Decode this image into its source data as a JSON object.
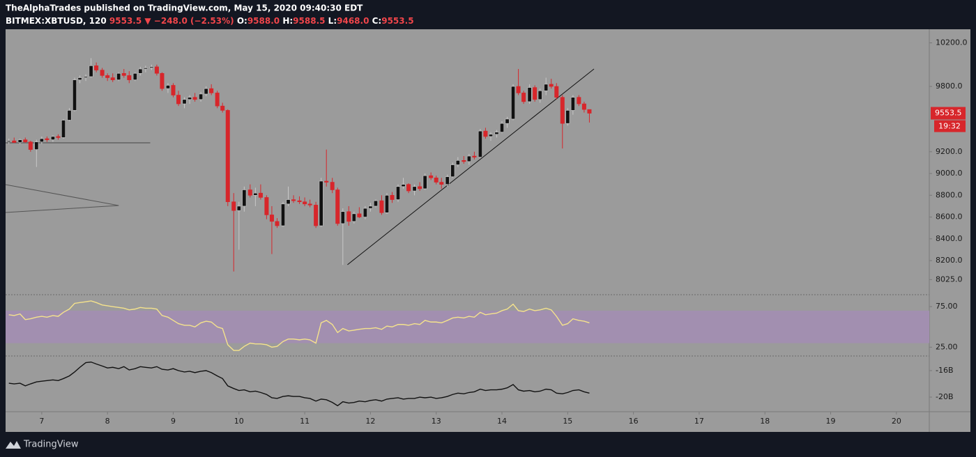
{
  "header": {
    "publisher": "TheAlphaTrades published on TradingView.com, May 15, 2020 09:40:30 EDT",
    "symbol": "BITMEX:XBTUSD, 120",
    "last": "9553.5",
    "change": "▼ −248.0 (−2.53%)",
    "ohlc": [
      {
        "key": "O:",
        "value": "9588.0"
      },
      {
        "key": "H:",
        "value": "9588.5"
      },
      {
        "key": "L:",
        "value": "9468.0"
      },
      {
        "key": "C:",
        "value": "9553.5"
      }
    ],
    "footer": "TradingView"
  },
  "chart_data": {
    "type": "candlestick",
    "background": "#9b9b9b",
    "up_color": "#111111",
    "up_border": "#c8c8c8",
    "down_color": "#d7262b",
    "x": [
      6.5,
      6.58,
      6.67,
      6.75,
      6.83,
      6.92,
      7,
      7.08,
      7.17,
      7.25,
      7.33,
      7.42,
      7.5,
      7.58,
      7.67,
      7.75,
      7.83,
      7.92,
      8,
      8.08,
      8.17,
      8.25,
      8.33,
      8.42,
      8.5,
      8.58,
      8.67,
      8.75,
      8.83,
      8.92,
      9,
      9.08,
      9.17,
      9.25,
      9.33,
      9.42,
      9.5,
      9.58,
      9.67,
      9.75,
      9.83,
      9.92,
      10,
      10.08,
      10.17,
      10.25,
      10.33,
      10.42,
      10.5,
      10.58,
      10.67,
      10.75,
      10.83,
      10.92,
      11,
      11.08,
      11.17,
      11.25,
      11.33,
      11.42,
      11.5,
      11.58,
      11.67,
      11.75,
      11.83,
      11.92,
      12,
      12.08,
      12.17,
      12.25,
      12.33,
      12.42,
      12.5,
      12.58,
      12.67,
      12.75,
      12.83,
      12.92,
      13,
      13.08,
      13.17,
      13.25,
      13.33,
      13.42,
      13.5,
      13.58,
      13.67,
      13.75,
      13.83,
      13.92,
      14,
      14.08,
      14.17,
      14.25,
      14.33,
      14.42,
      14.5,
      14.58,
      14.67,
      14.75,
      14.83,
      14.92,
      15,
      15.08,
      15.17,
      15.25,
      15.33
    ],
    "open": [
      9290,
      9300,
      9285,
      9310,
      9290,
      9220,
      9290,
      9320,
      9310,
      9340,
      9330,
      9490,
      9580,
      9860,
      9880,
      9890,
      9990,
      9950,
      9900,
      9880,
      9860,
      9920,
      9900,
      9860,
      9920,
      9960,
      9970,
      9980,
      9920,
      9780,
      9810,
      9720,
      9640,
      9680,
      9700,
      9680,
      9730,
      9780,
      9740,
      9620,
      9580,
      8740,
      8660,
      8700,
      8850,
      8800,
      8820,
      8780,
      8620,
      8560,
      8520,
      8720,
      8760,
      8750,
      8740,
      8720,
      8710,
      8520,
      8930,
      8920,
      8850,
      8540,
      8650,
      8560,
      8630,
      8600,
      8680,
      8700,
      8750,
      8640,
      8800,
      8760,
      8880,
      8900,
      8840,
      8880,
      8860,
      8980,
      8960,
      8920,
      8900,
      8970,
      9080,
      9120,
      9110,
      9160,
      9150,
      9390,
      9340,
      9360,
      9380,
      9460,
      9500,
      9800,
      9740,
      9660,
      9790,
      9680,
      9760,
      9820,
      9800,
      9700,
      9460,
      9580,
      9700,
      9640,
      9588
    ],
    "high": [
      9320,
      9330,
      9320,
      9330,
      9300,
      9310,
      9340,
      9340,
      9350,
      9360,
      9500,
      9600,
      9880,
      9900,
      9910,
      10060,
      10020,
      9970,
      9920,
      9920,
      9930,
      9960,
      9940,
      9930,
      9980,
      9990,
      10000,
      10000,
      9930,
      9830,
      9830,
      9760,
      9700,
      9720,
      9740,
      9750,
      9800,
      9820,
      9760,
      9650,
      9590,
      8820,
      8740,
      8880,
      8900,
      8870,
      8900,
      8800,
      8700,
      8590,
      8740,
      8880,
      8800,
      8790,
      8780,
      8760,
      8740,
      8960,
      9220,
      8960,
      8870,
      8680,
      8700,
      8650,
      8690,
      8700,
      8730,
      8760,
      8800,
      8820,
      8830,
      8900,
      8960,
      8910,
      8900,
      8920,
      9000,
      9010,
      8980,
      8960,
      8990,
      9100,
      9150,
      9160,
      9180,
      9200,
      9410,
      9420,
      9380,
      9400,
      9480,
      9520,
      9820,
      9960,
      9760,
      9820,
      9810,
      9780,
      9880,
      9870,
      9830,
      9720,
      9600,
      9720,
      9720,
      9660,
      9588.5
    ],
    "low": [
      9270,
      9280,
      9270,
      9280,
      9200,
      9060,
      9270,
      9290,
      9290,
      9310,
      9320,
      9480,
      9570,
      9830,
      9850,
      9880,
      9930,
      9880,
      9850,
      9840,
      9850,
      9880,
      9830,
      9850,
      9900,
      9930,
      9950,
      9900,
      9760,
      9740,
      9700,
      9620,
      9600,
      9640,
      9660,
      9660,
      9710,
      9720,
      9600,
      9560,
      8700,
      8100,
      8300,
      8650,
      8780,
      8700,
      8760,
      8580,
      8260,
      8500,
      8510,
      8700,
      8730,
      8720,
      8700,
      8690,
      8500,
      8510,
      8880,
      8820,
      8520,
      8160,
      8520,
      8540,
      8590,
      8580,
      8650,
      8690,
      8620,
      8630,
      8730,
      8740,
      8860,
      8820,
      8800,
      8840,
      8850,
      8940,
      8900,
      8860,
      8880,
      8960,
      9060,
      9090,
      9080,
      9130,
      9140,
      9320,
      9300,
      9330,
      9370,
      9420,
      9490,
      9720,
      9640,
      9640,
      9660,
      9650,
      9720,
      9780,
      9680,
      9230,
      9440,
      9540,
      9620,
      9560,
      9468
    ],
    "close": [
      9300,
      9285,
      9310,
      9290,
      9220,
      9290,
      9320,
      9310,
      9340,
      9330,
      9490,
      9580,
      9860,
      9880,
      9890,
      9990,
      9950,
      9900,
      9880,
      9860,
      9920,
      9900,
      9860,
      9920,
      9960,
      9970,
      9980,
      9920,
      9780,
      9810,
      9720,
      9640,
      9680,
      9700,
      9680,
      9730,
      9780,
      9740,
      9620,
      9580,
      8740,
      8660,
      8700,
      8850,
      8800,
      8820,
      8780,
      8620,
      8560,
      8520,
      8720,
      8760,
      8750,
      8740,
      8720,
      8710,
      8520,
      8930,
      8920,
      8850,
      8540,
      8650,
      8560,
      8630,
      8600,
      8680,
      8700,
      8750,
      8640,
      8800,
      8760,
      8880,
      8900,
      8840,
      8880,
      8860,
      8980,
      8960,
      8920,
      8900,
      8970,
      9080,
      9120,
      9110,
      9160,
      9150,
      9390,
      9340,
      9360,
      9380,
      9460,
      9500,
      9800,
      9740,
      9660,
      9790,
      9680,
      9760,
      9820,
      9800,
      9700,
      9460,
      9580,
      9700,
      9640,
      9588,
      9553.5
    ],
    "xlim": [
      6.45,
      20.5
    ],
    "xticks": [
      7,
      8,
      9,
      10,
      11,
      12,
      13,
      14,
      15,
      16,
      17,
      18,
      19,
      20
    ],
    "ylim": [
      7906,
      10325
    ],
    "yticks": [
      {
        "value": 10200,
        "label": "10200.0"
      },
      {
        "value": 9800,
        "label": "9800.0"
      },
      {
        "value": 9200,
        "label": "9200.0"
      },
      {
        "value": 9000,
        "label": "9000.0"
      },
      {
        "value": 8800,
        "label": "8800.0"
      },
      {
        "value": 8600,
        "label": "8600.0"
      },
      {
        "value": 8400,
        "label": "8400.0"
      },
      {
        "value": 8200,
        "label": "8200.0"
      },
      {
        "value": 8025,
        "label": "8025.0"
      }
    ],
    "last_price": 9553.5,
    "last_color": "#d7262b",
    "countdown": "19:32",
    "lines": [
      {
        "x": [
          11.65,
          15.4
        ],
        "y": [
          8162,
          9960
        ],
        "color": "#111111"
      },
      {
        "x": [
          6.45,
          8.65
        ],
        "y": [
          9282,
          9282
        ],
        "color": "#444444"
      },
      {
        "x": [
          6.45,
          8.17
        ],
        "y": [
          8898,
          8706
        ],
        "color": "#555555"
      },
      {
        "x": [
          6.45,
          8.17
        ],
        "y": [
          8642,
          8706
        ],
        "color": "#555555"
      }
    ],
    "rsi": {
      "color": "#f5e38c",
      "band": [
        30,
        70
      ],
      "band_color": "#a28fb0",
      "ylim": [
        15,
        88
      ],
      "yticks": [
        {
          "value": 75,
          "label": "75.00"
        },
        {
          "value": 25,
          "label": "25.00"
        }
      ],
      "values": [
        65,
        64,
        66,
        59,
        60,
        62,
        63,
        62,
        64,
        63,
        68,
        72,
        79,
        80,
        81,
        82,
        80,
        77,
        76,
        75,
        74,
        73,
        71,
        72,
        74,
        73,
        73,
        72,
        64,
        62,
        58,
        54,
        52,
        52,
        50,
        55,
        57,
        56,
        50,
        48,
        28,
        21,
        21,
        26,
        30,
        29,
        29,
        28,
        25,
        26,
        32,
        35,
        35,
        34,
        35,
        34,
        30,
        55,
        58,
        53,
        43,
        48,
        45,
        46,
        47,
        48,
        48,
        49,
        47,
        51,
        50,
        53,
        53,
        52,
        54,
        53,
        58,
        56,
        56,
        55,
        58,
        61,
        62,
        61,
        63,
        62,
        68,
        65,
        66,
        67,
        70,
        72,
        78,
        70,
        69,
        72,
        70,
        71,
        73,
        71,
        63,
        52,
        54,
        60,
        58,
        57,
        55
      ]
    },
    "lower": {
      "color": "#111111",
      "ylim": [
        -22.1,
        -14
      ],
      "yticks": [
        {
          "value": -16,
          "label": "-16B"
        },
        {
          "value": -20,
          "label": "-20B"
        }
      ],
      "values": [
        -17.9,
        -18.0,
        -17.9,
        -18.3,
        -18.0,
        -17.7,
        -17.6,
        -17.5,
        -17.4,
        -17.5,
        -17.2,
        -16.8,
        -16.2,
        -15.5,
        -14.8,
        -14.7,
        -15.0,
        -15.3,
        -15.6,
        -15.5,
        -15.7,
        -15.4,
        -15.9,
        -15.7,
        -15.4,
        -15.5,
        -15.6,
        -15.4,
        -15.8,
        -15.9,
        -15.7,
        -16.0,
        -16.2,
        -16.1,
        -16.3,
        -16.1,
        -16.0,
        -16.3,
        -16.8,
        -17.2,
        -18.3,
        -18.7,
        -19.0,
        -18.9,
        -19.2,
        -19.1,
        -19.3,
        -19.6,
        -20.1,
        -20.2,
        -19.9,
        -19.8,
        -19.9,
        -19.9,
        -20.1,
        -20.2,
        -20.6,
        -20.3,
        -20.4,
        -20.8,
        -21.3,
        -20.7,
        -20.9,
        -20.8,
        -20.6,
        -20.7,
        -20.5,
        -20.4,
        -20.6,
        -20.3,
        -20.2,
        -20.1,
        -20.3,
        -20.2,
        -20.2,
        -20.0,
        -20.1,
        -20.0,
        -20.2,
        -20.1,
        -19.9,
        -19.6,
        -19.4,
        -19.5,
        -19.3,
        -19.2,
        -18.8,
        -19.0,
        -18.9,
        -18.9,
        -18.8,
        -18.6,
        -18.1,
        -18.9,
        -19.1,
        -19.0,
        -19.2,
        -19.1,
        -18.8,
        -18.9,
        -19.4,
        -19.5,
        -19.3,
        -19.0,
        -18.9,
        -19.2,
        -19.4
      ]
    }
  }
}
